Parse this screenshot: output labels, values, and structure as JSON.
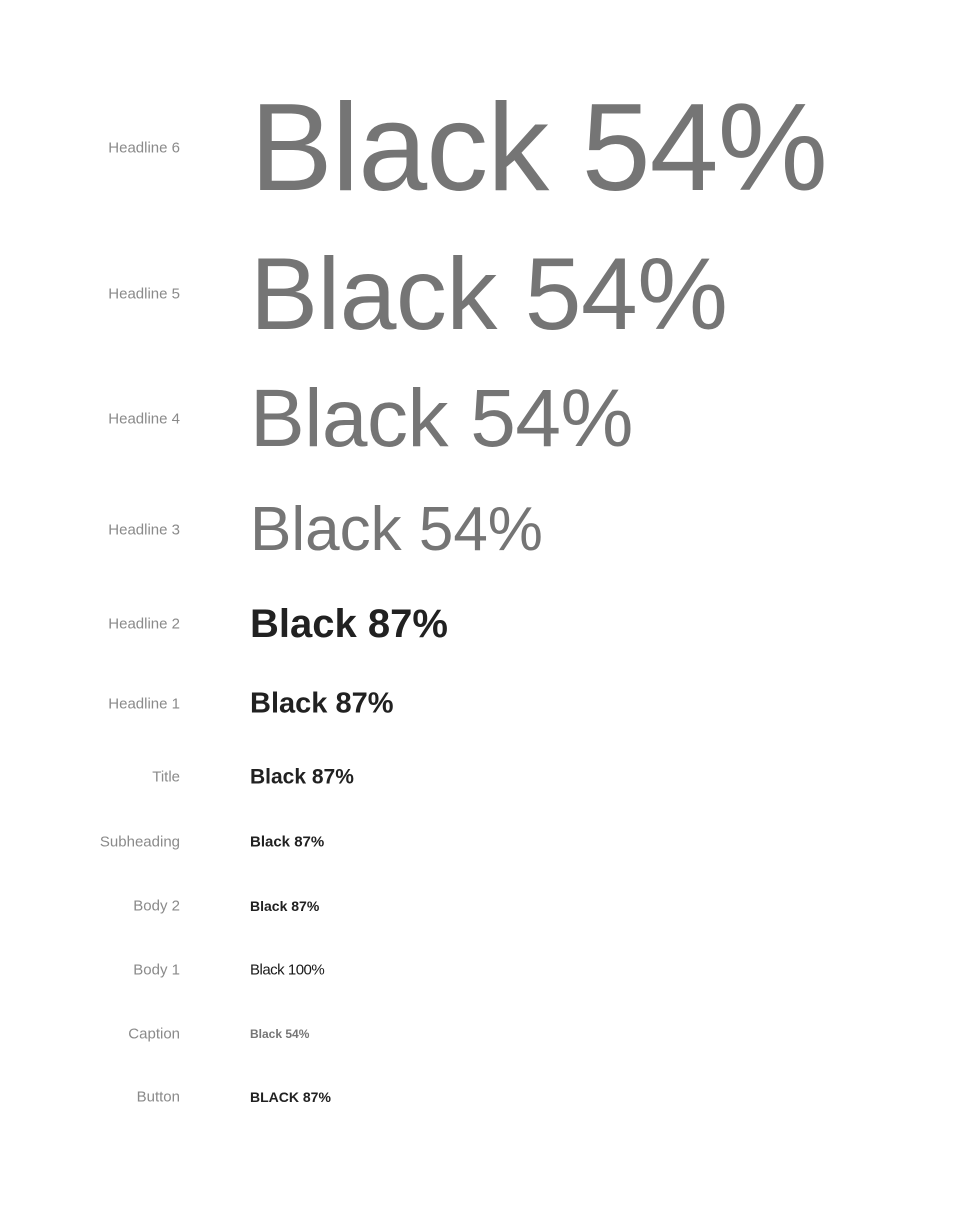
{
  "styles": [
    {
      "label": "Headline 6",
      "sample": "Black 54%"
    },
    {
      "label": "Headline 5",
      "sample": "Black 54%"
    },
    {
      "label": "Headline 4",
      "sample": "Black 54%"
    },
    {
      "label": "Headline 3",
      "sample": "Black 54%"
    },
    {
      "label": "Headline 2",
      "sample": "Black 87%"
    },
    {
      "label": "Headline 1",
      "sample": "Black 87%"
    },
    {
      "label": "Title",
      "sample": "Black 87%"
    },
    {
      "label": "Subheading",
      "sample": "Black 87%"
    },
    {
      "label": "Body 2",
      "sample": "Black 87%"
    },
    {
      "label": "Body 1",
      "sample": "Black 100%"
    },
    {
      "label": "Caption",
      "sample": "Black 54%"
    },
    {
      "label": "Button",
      "sample": "BLACK 87%"
    }
  ],
  "colors": {
    "label": "#8a8a8a",
    "black_54": "#757575",
    "black_87": "#212121"
  }
}
